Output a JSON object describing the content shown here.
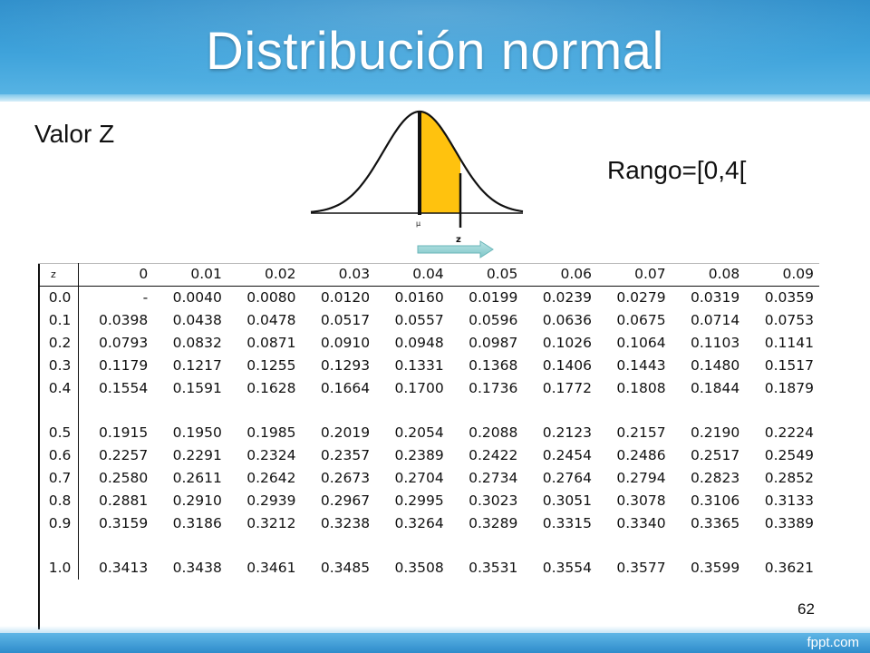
{
  "slide": {
    "title": "Distribución normal",
    "subtitle": "Valor Z",
    "range_label": "Rango=[0,4[",
    "page_number": "62",
    "brand": "fppt.com"
  },
  "figure": {
    "mu_label": "μ",
    "z_label": "z"
  },
  "table": {
    "header": [
      "z",
      "0",
      "0.01",
      "0.02",
      "0.03",
      "0.04",
      "0.05",
      "0.06",
      "0.07",
      "0.08",
      "0.09"
    ],
    "rows": [
      [
        "0.0",
        "-",
        "0.0040",
        "0.0080",
        "0.0120",
        "0.0160",
        "0.0199",
        "0.0239",
        "0.0279",
        "0.0319",
        "0.0359"
      ],
      [
        "0.1",
        "0.0398",
        "0.0438",
        "0.0478",
        "0.0517",
        "0.0557",
        "0.0596",
        "0.0636",
        "0.0675",
        "0.0714",
        "0.0753"
      ],
      [
        "0.2",
        "0.0793",
        "0.0832",
        "0.0871",
        "0.0910",
        "0.0948",
        "0.0987",
        "0.1026",
        "0.1064",
        "0.1103",
        "0.1141"
      ],
      [
        "0.3",
        "0.1179",
        "0.1217",
        "0.1255",
        "0.1293",
        "0.1331",
        "0.1368",
        "0.1406",
        "0.1443",
        "0.1480",
        "0.1517"
      ],
      [
        "0.4",
        "0.1554",
        "0.1591",
        "0.1628",
        "0.1664",
        "0.1700",
        "0.1736",
        "0.1772",
        "0.1808",
        "0.1844",
        "0.1879"
      ],
      [
        "",
        "",
        "",
        "",
        "",
        "",
        "",
        "",
        "",
        "",
        ""
      ],
      [
        "0.5",
        "0.1915",
        "0.1950",
        "0.1985",
        "0.2019",
        "0.2054",
        "0.2088",
        "0.2123",
        "0.2157",
        "0.2190",
        "0.2224"
      ],
      [
        "0.6",
        "0.2257",
        "0.2291",
        "0.2324",
        "0.2357",
        "0.2389",
        "0.2422",
        "0.2454",
        "0.2486",
        "0.2517",
        "0.2549"
      ],
      [
        "0.7",
        "0.2580",
        "0.2611",
        "0.2642",
        "0.2673",
        "0.2704",
        "0.2734",
        "0.2764",
        "0.2794",
        "0.2823",
        "0.2852"
      ],
      [
        "0.8",
        "0.2881",
        "0.2910",
        "0.2939",
        "0.2967",
        "0.2995",
        "0.3023",
        "0.3051",
        "0.3078",
        "0.3106",
        "0.3133"
      ],
      [
        "0.9",
        "0.3159",
        "0.3186",
        "0.3212",
        "0.3238",
        "0.3264",
        "0.3289",
        "0.3315",
        "0.3340",
        "0.3365",
        "0.3389"
      ],
      [
        "",
        "",
        "",
        "",
        "",
        "",
        "",
        "",
        "",
        "",
        ""
      ],
      [
        "1.0",
        "0.3413",
        "0.3438",
        "0.3461",
        "0.3485",
        "0.3508",
        "0.3531",
        "0.3554",
        "0.3577",
        "0.3599",
        "0.3621"
      ]
    ]
  },
  "colors": {
    "banner": "#3fa3db",
    "shaded_area": "#ffc20e",
    "arrow": "#7fc7c9"
  }
}
